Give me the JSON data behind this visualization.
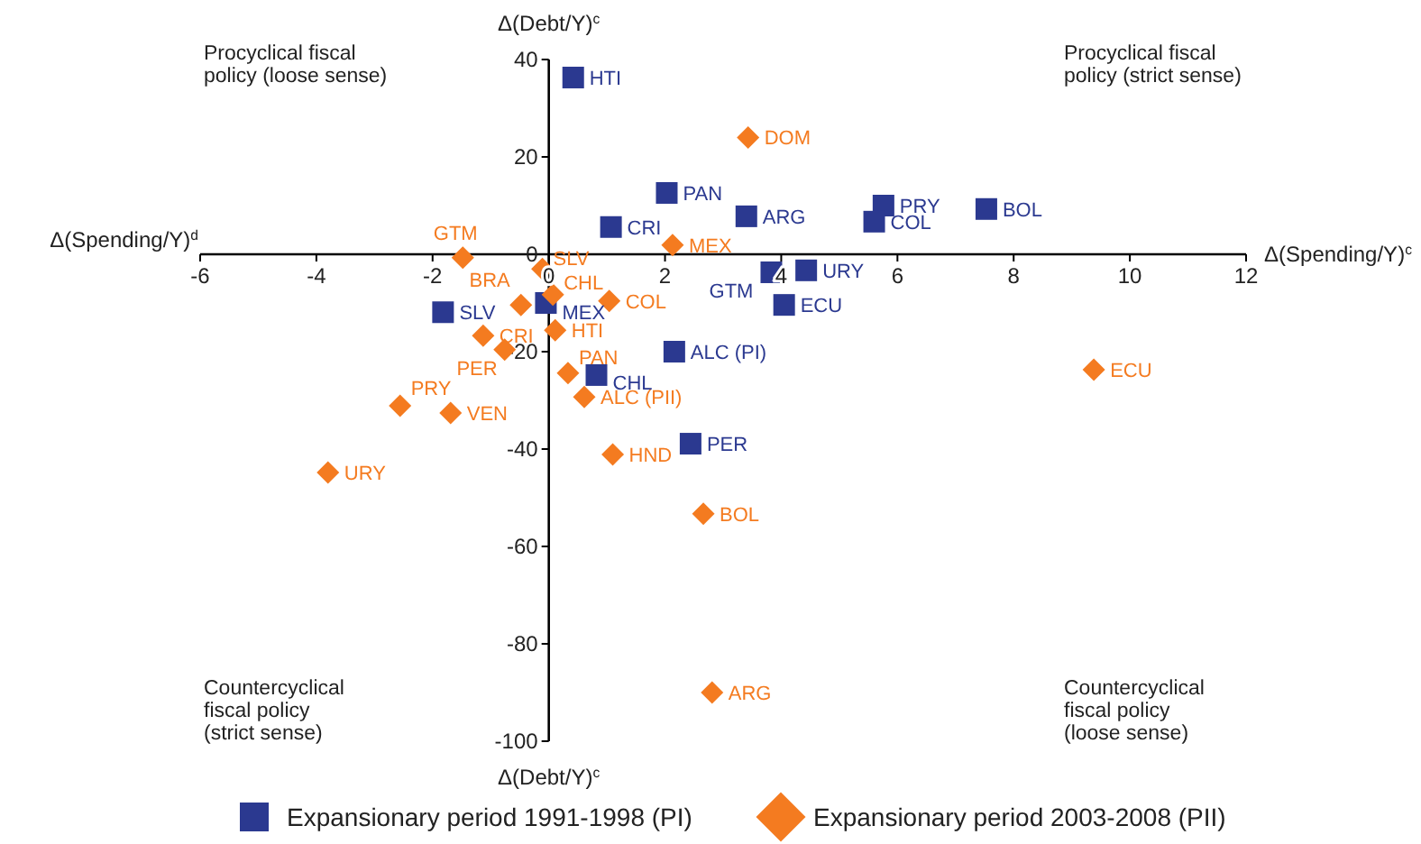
{
  "chart_data": {
    "type": "scatter",
    "xlabel": "Δ(Spending/Y)$^{c}$",
    "ylabel": "Δ(Debt/Y)$^{c}$",
    "xlim": [
      -6,
      12
    ],
    "xticks": [
      -6,
      -4,
      -2,
      0,
      2,
      4,
      6,
      8,
      10,
      12
    ],
    "ylim": [
      -100,
      40
    ],
    "yticks": [
      -100,
      -80,
      -60,
      -40,
      -20,
      0,
      20,
      40
    ],
    "grid": false,
    "legend": "bottom",
    "series": [
      {
        "name": "Expansionary period 1991-1998 (PI)",
        "color": "#2b3990",
        "marker": "square",
        "x": [
          0.42,
          2.03,
          3.4,
          1.07,
          5.76,
          5.6,
          7.53,
          3.83,
          4.43,
          4.05,
          -0.05,
          -1.82,
          2.16,
          0.82,
          2.44
        ],
        "values": [
          36.3,
          12.6,
          7.8,
          5.6,
          10,
          6.7,
          9.3,
          -3.7,
          -3.3,
          -10.4,
          -10,
          -11.9,
          -20,
          -24.8,
          -38.9
        ]
      },
      {
        "name": "Expansionary period 2003-2008 (PII)",
        "color": "#f47b20",
        "marker": "diamond",
        "x": [
          3.43,
          2.13,
          -1.48,
          -0.11,
          0.07,
          -0.48,
          1.04,
          0.11,
          -1.13,
          -0.76,
          0.33,
          0.61,
          -2.56,
          -1.69,
          -3.8,
          1.1,
          2.66,
          2.81,
          9.38
        ],
        "values": [
          24,
          1.9,
          -0.7,
          -3,
          -8.3,
          -10.4,
          -9.6,
          -15.6,
          -16.7,
          -19.6,
          -24.4,
          -29.3,
          -31.1,
          -32.6,
          -44.8,
          -41.1,
          -53.3,
          -90,
          -23.7
        ]
      }
    ],
    "annotations": [
      {
        "text": "HTI",
        "x": 0.42,
        "y": 36.3
      },
      {
        "text": "PAN",
        "x": 2.03,
        "y": 12.6
      },
      {
        "text": "ARG",
        "x": 3.4,
        "y": 7.8
      },
      {
        "text": "CRI",
        "x": 1.07,
        "y": 5.6
      },
      {
        "text": "PRY",
        "x": 5.76,
        "y": 10
      },
      {
        "text": "COL",
        "x": 5.6,
        "y": 6.7
      },
      {
        "text": "BOL",
        "x": 7.53,
        "y": 9.3
      },
      {
        "text": "GTM",
        "x": 3.83,
        "y": -3.7
      },
      {
        "text": "URY",
        "x": 4.43,
        "y": -3.3
      },
      {
        "text": "ECU",
        "x": 4.05,
        "y": -10.4
      },
      {
        "text": "MEX",
        "x": -0.05,
        "y": -10
      },
      {
        "text": "SLV",
        "x": -1.82,
        "y": -11.9
      },
      {
        "text": "ALC (PI)",
        "x": 2.16,
        "y": -20
      },
      {
        "text": "CHL",
        "x": 0.82,
        "y": -24.8
      },
      {
        "text": "PER",
        "x": 2.44,
        "y": -38.9
      },
      {
        "text": "DOM",
        "x": 3.43,
        "y": 24
      },
      {
        "text": "MEX",
        "x": 2.13,
        "y": 1.9
      },
      {
        "text": "GTM",
        "x": -1.48,
        "y": -0.7
      },
      {
        "text": "SLV",
        "x": -0.11,
        "y": -3
      },
      {
        "text": "CHL",
        "x": 0.07,
        "y": -8.3
      },
      {
        "text": "BRA",
        "x": -0.48,
        "y": -10.4
      },
      {
        "text": "COL",
        "x": 1.04,
        "y": -9.6
      },
      {
        "text": "HTI",
        "x": 0.11,
        "y": -15.6
      },
      {
        "text": "CRI",
        "x": -1.13,
        "y": -16.7
      },
      {
        "text": "PER",
        "x": -0.76,
        "y": -19.6
      },
      {
        "text": "PAN",
        "x": 0.33,
        "y": -24.4
      },
      {
        "text": "ALC (PII)",
        "x": 0.61,
        "y": -29.3
      },
      {
        "text": "PRY",
        "x": -2.56,
        "y": -31.1
      },
      {
        "text": "VEN",
        "x": -1.69,
        "y": -32.6
      },
      {
        "text": "URY",
        "x": -3.8,
        "y": -44.8
      },
      {
        "text": "HND",
        "x": 1.1,
        "y": -41.1
      },
      {
        "text": "BOL",
        "x": 2.66,
        "y": -53.3
      },
      {
        "text": "ARG",
        "x": 2.81,
        "y": -90
      },
      {
        "text": "ECU",
        "x": 9.38,
        "y": -23.7
      },
      "Procyclical fiscal\npolicy (loose sense)",
      "Procyclical fiscal\npolicy (strict sense)",
      "Countercyclical\nfiscal policy\n(strict sense)",
      "Countercyclical\nfiscal policy\n(loose sense)",
      "Δ(Spending/Y)$^{d}$",
      "Δ(Debt/Y)$^{c}$"
    ]
  }
}
